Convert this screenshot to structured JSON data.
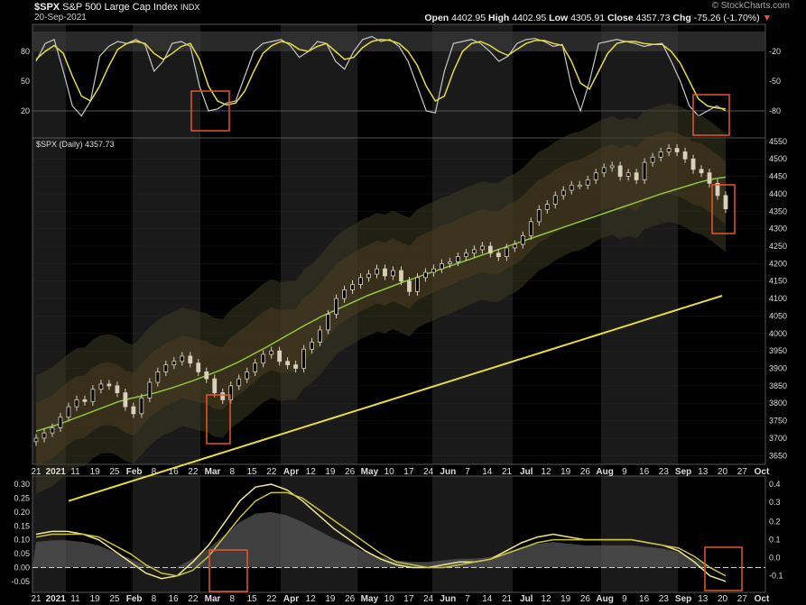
{
  "header": {
    "symbol": "$SPX",
    "name": "S&P 500 Large Cap Index",
    "exchange": "INDX",
    "date": "20-Sep-2021",
    "open_label": "Open",
    "open": "4402.95",
    "high_label": "High",
    "high": "4402.95",
    "low_label": "Low",
    "low": "4305.91",
    "close_label": "Close",
    "close": "4357.73",
    "chg_label": "Chg",
    "chg": "-75.26 (-1.70%)",
    "watermark": "© StockCharts.com"
  },
  "colors": {
    "background": "#000000",
    "shade_band": "#1a1a1a",
    "grid": "#333333",
    "candle": "#d8d0b8",
    "ma50": "#8dc63f",
    "ma200": "#e6dc3c",
    "stoch_k": "#c8c8c8",
    "stoch_d": "#e6dc3c",
    "band_outer": "#3a3a22",
    "band_inner": "#4a3a22",
    "highlight_box": "#e8552e",
    "text": "#dddddd"
  },
  "chart_data": [
    {
      "type": "line",
      "panel": "stochastic",
      "ylim": [
        0,
        100
      ],
      "left_ticks": [
        "80",
        "50",
        "20"
      ],
      "right_ticks": [
        "-20",
        "-50",
        "-80"
      ],
      "series": [
        {
          "values": [
            70,
            88,
            92,
            60,
            25,
            15,
            30,
            75,
            85,
            90,
            88,
            92,
            87,
            60,
            70,
            88,
            90,
            85,
            45,
            20,
            22,
            28,
            30,
            55,
            80,
            88,
            90,
            92,
            86,
            74,
            80,
            90,
            88,
            70,
            62,
            80,
            92,
            95,
            90,
            92,
            85,
            70,
            45,
            20,
            18,
            60,
            88,
            90,
            92,
            88,
            80,
            70,
            75,
            88,
            92,
            93,
            90,
            85,
            87,
            45,
            20,
            50,
            88,
            90,
            92,
            90,
            88,
            85,
            87,
            88,
            70,
            50,
            25,
            15,
            20,
            25,
            20
          ]
        },
        {
          "values": [
            72,
            80,
            86,
            78,
            55,
            35,
            30,
            45,
            65,
            82,
            88,
            90,
            88,
            78,
            72,
            78,
            85,
            88,
            72,
            45,
            30,
            26,
            28,
            40,
            60,
            78,
            86,
            90,
            88,
            82,
            80,
            85,
            88,
            80,
            72,
            74,
            84,
            90,
            92,
            91,
            88,
            80,
            66,
            45,
            30,
            35,
            60,
            80,
            88,
            90,
            86,
            80,
            76,
            82,
            88,
            91,
            91,
            88,
            86,
            70,
            48,
            42,
            60,
            78,
            88,
            90,
            90,
            88,
            87,
            87,
            80,
            68,
            50,
            32,
            25,
            23,
            22
          ]
        }
      ]
    },
    {
      "type": "candlestick",
      "panel": "price",
      "title": "$SPX (Daily) 4357.73",
      "ylim": [
        3625,
        4560
      ],
      "y_ticks": [
        4550,
        4500,
        4450,
        4400,
        4350,
        4300,
        4250,
        4200,
        4150,
        4100,
        4050,
        4000,
        3950,
        3900,
        3850,
        3800,
        3750,
        3700,
        3650
      ],
      "close": [
        3700,
        3715,
        3730,
        3760,
        3790,
        3810,
        3805,
        3840,
        3855,
        3850,
        3830,
        3790,
        3770,
        3815,
        3860,
        3890,
        3910,
        3920,
        3935,
        3915,
        3890,
        3870,
        3830,
        3810,
        3850,
        3870,
        3890,
        3915,
        3940,
        3950,
        3920,
        3910,
        3900,
        3955,
        3975,
        4010,
        4055,
        4100,
        4125,
        4140,
        4160,
        4170,
        4185,
        4165,
        4180,
        4150,
        4120,
        4160,
        4175,
        4185,
        4200,
        4205,
        4220,
        4230,
        4240,
        4250,
        4230,
        4220,
        4245,
        4255,
        4280,
        4320,
        4355,
        4370,
        4395,
        4410,
        4425,
        4425,
        4440,
        4460,
        4475,
        4480,
        4450,
        4460,
        4440,
        4490,
        4505,
        4520,
        4530,
        4520,
        4500,
        4470,
        4460,
        4430,
        4395,
        4357
      ],
      "ma50": [
        3720,
        3728,
        3736,
        3745,
        3755,
        3765,
        3775,
        3785,
        3795,
        3805,
        3812,
        3818,
        3824,
        3830,
        3838,
        3846,
        3855,
        3864,
        3874,
        3884,
        3894,
        3906,
        3918,
        3932,
        3946,
        3960,
        3975,
        3990,
        4005,
        4020,
        4034,
        4048,
        4060,
        4072,
        4084,
        4096,
        4108,
        4118,
        4128,
        4138,
        4148,
        4157,
        4166,
        4175,
        4184,
        4193,
        4202,
        4211,
        4220,
        4229,
        4238,
        4247,
        4256,
        4265,
        4274,
        4283,
        4292,
        4301,
        4310,
        4319,
        4328,
        4337,
        4346,
        4355,
        4364,
        4373,
        4382,
        4391,
        4400,
        4408,
        4416,
        4424,
        4432,
        4439,
        4444,
        4448
      ],
      "ma200": [
        3520,
        3534,
        3548,
        3562,
        3576,
        3590,
        3604,
        3618,
        3632,
        3646,
        3660,
        3674,
        3688,
        3702,
        3716,
        3730,
        3744,
        3758,
        3772,
        3786,
        3800,
        3814,
        3828,
        3842,
        3856,
        3870,
        3884,
        3898,
        3912,
        3926,
        3940,
        3954,
        3968,
        3982,
        3996,
        4010,
        4024,
        4038,
        4052,
        4066,
        4080,
        4094,
        4108
      ],
      "annotation": "bollinger envelope and moving averages"
    },
    {
      "type": "line",
      "panel": "macd",
      "left_ticks": [
        "0.30",
        "0.25",
        "0.20",
        "0.15",
        "0.10",
        "0.05",
        "0.00",
        "-0.05"
      ],
      "right_ticks": [
        "0.4",
        "0.3",
        "0.2",
        "0.1",
        "0.0",
        "-0.1"
      ],
      "ylim": [
        -0.07,
        0.31
      ],
      "series": [
        {
          "values": [
            0.12,
            0.13,
            0.13,
            0.12,
            0.1,
            0.06,
            0.02,
            -0.02,
            -0.04,
            -0.03,
            0.02,
            0.08,
            0.16,
            0.24,
            0.29,
            0.3,
            0.28,
            0.24,
            0.19,
            0.14,
            0.1,
            0.06,
            0.03,
            0.01,
            0.0,
            0.0,
            0.01,
            0.02,
            0.02,
            0.03,
            0.06,
            0.09,
            0.11,
            0.12,
            0.11,
            0.1,
            0.1,
            0.1,
            0.1,
            0.09,
            0.08,
            0.06,
            0.02,
            -0.03,
            -0.05
          ]
        },
        {
          "values": [
            0.11,
            0.12,
            0.12,
            0.12,
            0.11,
            0.08,
            0.05,
            0.01,
            -0.02,
            -0.03,
            -0.01,
            0.04,
            0.11,
            0.18,
            0.24,
            0.27,
            0.27,
            0.25,
            0.21,
            0.17,
            0.13,
            0.09,
            0.05,
            0.02,
            0.01,
            0.0,
            0.0,
            0.01,
            0.02,
            0.03,
            0.05,
            0.07,
            0.09,
            0.1,
            0.1,
            0.1,
            0.1,
            0.1,
            0.1,
            0.09,
            0.08,
            0.07,
            0.04,
            0.0,
            -0.03
          ]
        }
      ]
    }
  ],
  "x_axis": {
    "labels": [
      {
        "text": "21",
        "bold": false
      },
      {
        "text": "2021",
        "bold": true
      },
      {
        "text": "11",
        "bold": false
      },
      {
        "text": "19",
        "bold": false
      },
      {
        "text": "25",
        "bold": false
      },
      {
        "text": "Feb",
        "bold": true
      },
      {
        "text": "8",
        "bold": false
      },
      {
        "text": "16",
        "bold": false
      },
      {
        "text": "22",
        "bold": false
      },
      {
        "text": "Mar",
        "bold": true
      },
      {
        "text": "8",
        "bold": false
      },
      {
        "text": "15",
        "bold": false
      },
      {
        "text": "22",
        "bold": false
      },
      {
        "text": "Apr",
        "bold": true
      },
      {
        "text": "12",
        "bold": false
      },
      {
        "text": "19",
        "bold": false
      },
      {
        "text": "26",
        "bold": false
      },
      {
        "text": "May",
        "bold": true
      },
      {
        "text": "10",
        "bold": false
      },
      {
        "text": "17",
        "bold": false
      },
      {
        "text": "24",
        "bold": false
      },
      {
        "text": "Jun",
        "bold": true
      },
      {
        "text": "7",
        "bold": false
      },
      {
        "text": "14",
        "bold": false
      },
      {
        "text": "21",
        "bold": false
      },
      {
        "text": "Jul",
        "bold": true
      },
      {
        "text": "12",
        "bold": false
      },
      {
        "text": "19",
        "bold": false
      },
      {
        "text": "26",
        "bold": false
      },
      {
        "text": "Aug",
        "bold": true
      },
      {
        "text": "9",
        "bold": false
      },
      {
        "text": "16",
        "bold": false
      },
      {
        "text": "23",
        "bold": false
      },
      {
        "text": "Sep",
        "bold": true
      },
      {
        "text": "13",
        "bold": false
      },
      {
        "text": "20",
        "bold": false
      },
      {
        "text": "27",
        "bold": false
      },
      {
        "text": "Oct",
        "bold": true
      }
    ]
  }
}
